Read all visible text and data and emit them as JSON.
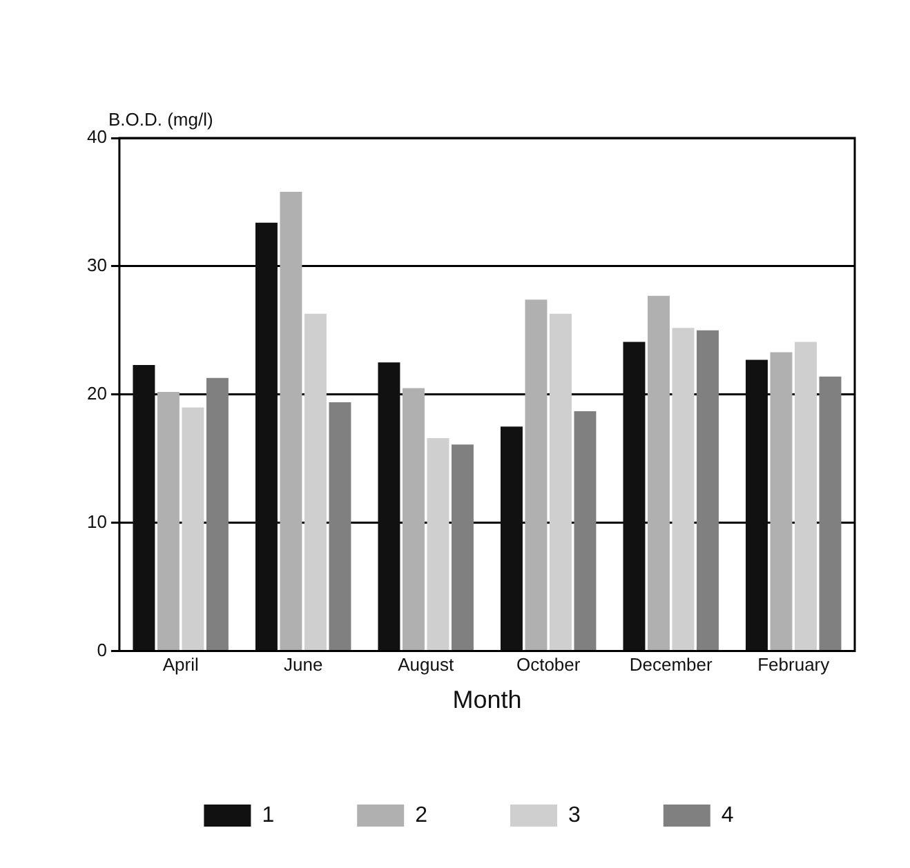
{
  "chart_data": {
    "type": "bar",
    "xlabel": "Month",
    "ylabel": "B.O.D. (mg/l)",
    "categories": [
      "April",
      "June",
      "August",
      "October",
      "December",
      "February"
    ],
    "series": [
      {
        "name": "1",
        "color": "#111111",
        "values": [
          22.3,
          33.4,
          22.5,
          17.5,
          24.1,
          22.7
        ]
      },
      {
        "name": "2",
        "color": "#b0b0b0",
        "values": [
          20.2,
          35.8,
          20.5,
          27.4,
          27.7,
          23.3
        ]
      },
      {
        "name": "3",
        "color": "#cfcfcf",
        "values": [
          19.0,
          26.3,
          16.6,
          26.3,
          25.2,
          24.1
        ]
      },
      {
        "name": "4",
        "color": "#808080",
        "values": [
          21.3,
          19.4,
          16.1,
          18.7,
          25.0,
          21.4
        ]
      }
    ],
    "ylim": [
      0,
      40
    ],
    "yticks": [
      0,
      10,
      20,
      30,
      40
    ],
    "grid": "y",
    "legend": "bottom"
  }
}
